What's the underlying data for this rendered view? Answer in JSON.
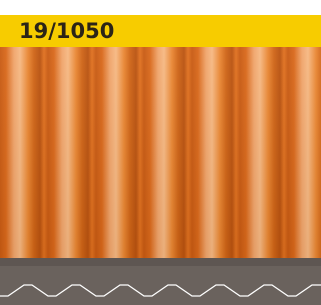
{
  "header": {
    "title": "19/1050"
  }
}
